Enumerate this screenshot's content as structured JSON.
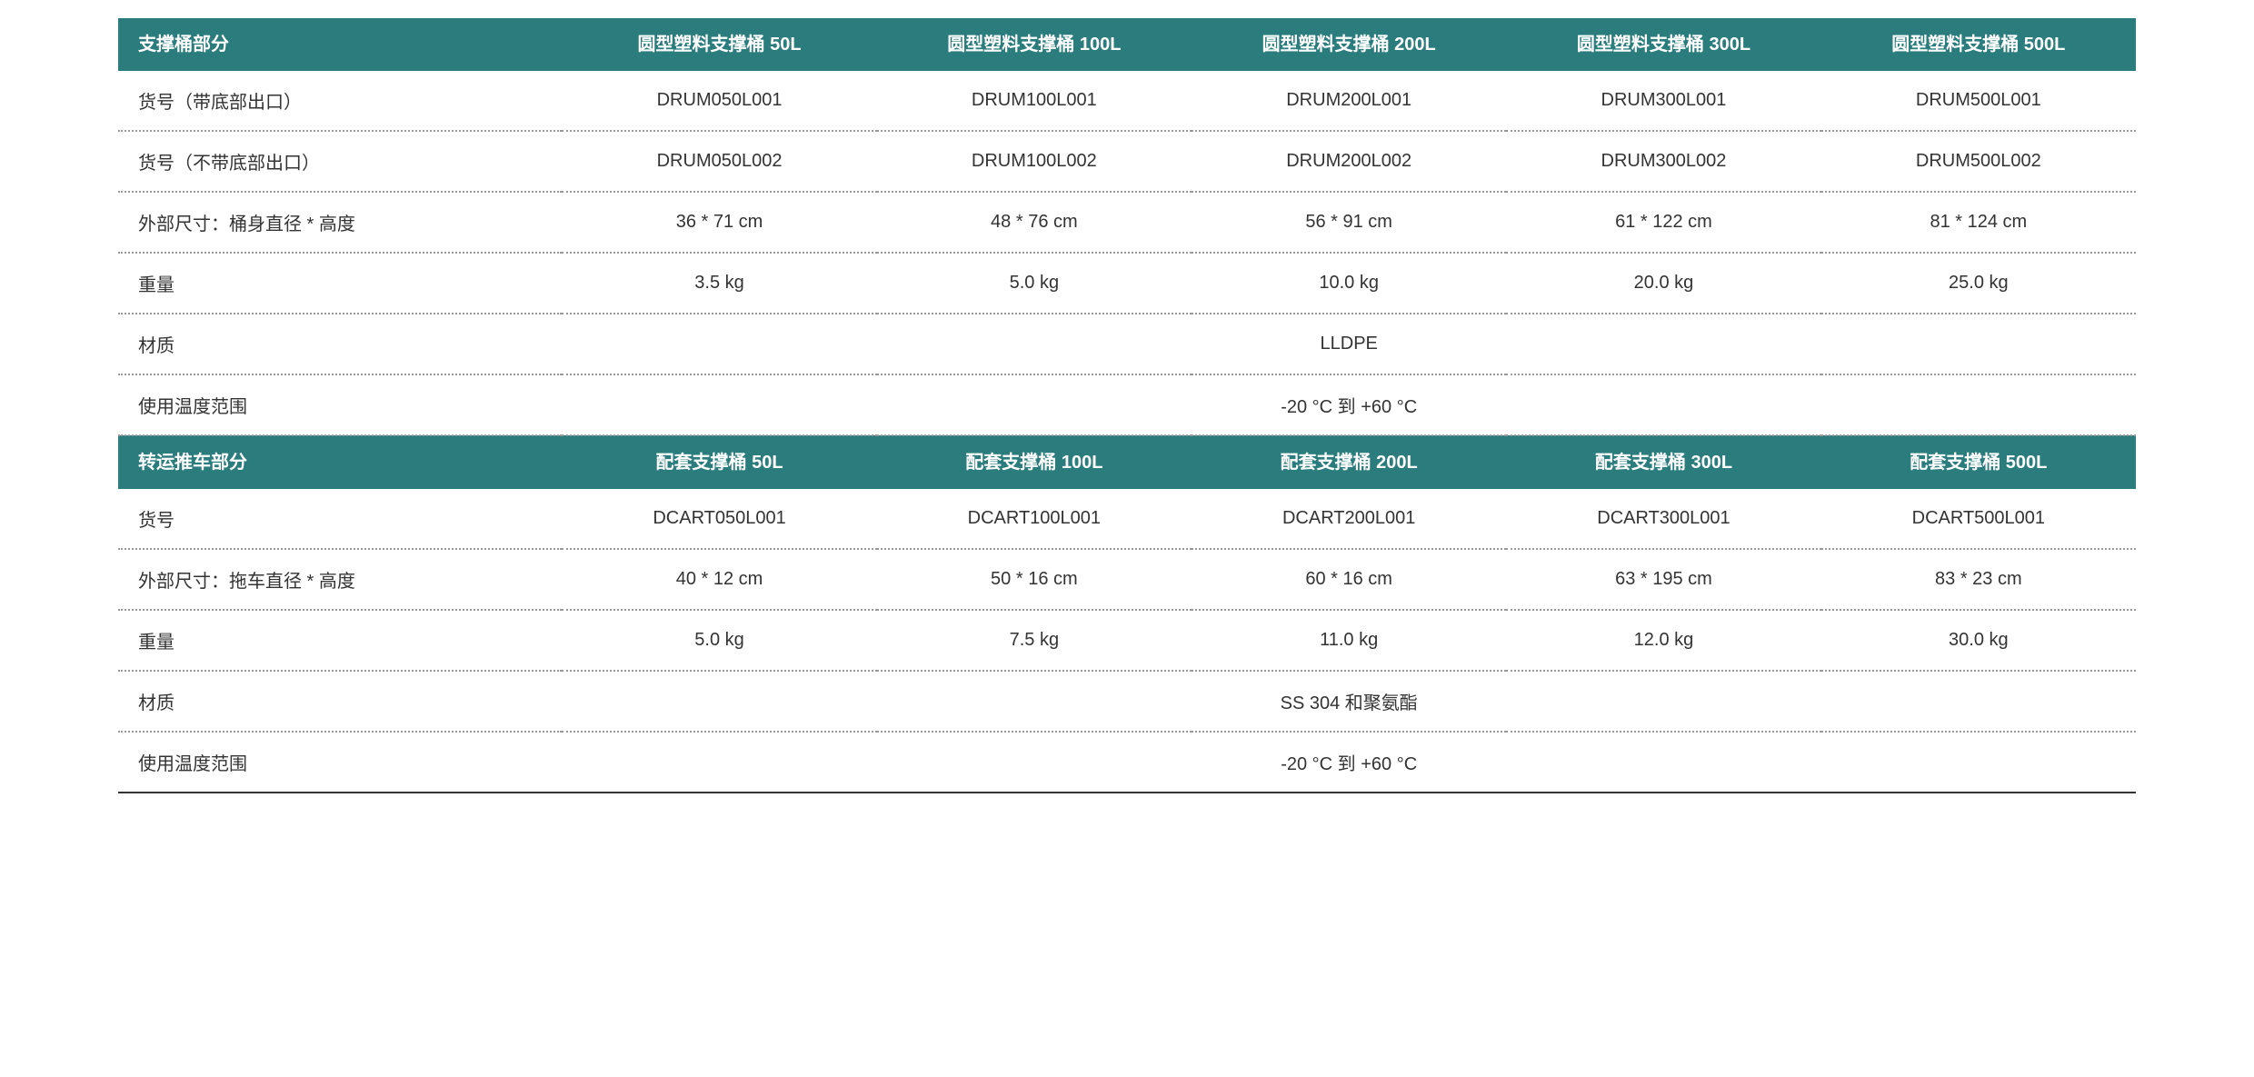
{
  "styling": {
    "header_bg": "#2b7c7d",
    "header_text_color": "#ffffff",
    "body_text_color": "#333333",
    "dotted_border_color": "#999999",
    "solid_border_color": "#333333",
    "header_font_size": 20,
    "body_font_size": 20,
    "font_family": "Microsoft YaHei"
  },
  "table1": {
    "headers": [
      "支撑桶部分",
      "圆型塑料支撑桶 50L",
      "圆型塑料支撑桶 100L",
      "圆型塑料支撑桶 200L",
      "圆型塑料支撑桶 300L",
      "圆型塑料支撑桶 500L"
    ],
    "rows": [
      {
        "label": "货号（带底部出口）",
        "values": [
          "DRUM050L001",
          "DRUM100L001",
          "DRUM200L001",
          "DRUM300L001",
          "DRUM500L001"
        ]
      },
      {
        "label": "货号（不带底部出口）",
        "values": [
          "DRUM050L002",
          "DRUM100L002",
          "DRUM200L002",
          "DRUM300L002",
          "DRUM500L002"
        ]
      },
      {
        "label": "外部尺寸：桶身直径 * 高度",
        "values": [
          "36 * 71 cm",
          "48 * 76 cm",
          "56 * 91 cm",
          "61 * 122 cm",
          "81 * 124 cm"
        ]
      },
      {
        "label": "重量",
        "values": [
          "3.5 kg",
          "5.0 kg",
          "10.0 kg",
          "20.0 kg",
          "25.0 kg"
        ]
      },
      {
        "label": "材质",
        "merged_value": "LLDPE"
      },
      {
        "label": "使用温度范围",
        "merged_value": "-20 °C 到 +60 °C"
      }
    ]
  },
  "table2": {
    "headers": [
      "转运推车部分",
      "配套支撑桶 50L",
      "配套支撑桶 100L",
      "配套支撑桶 200L",
      "配套支撑桶 300L",
      "配套支撑桶 500L"
    ],
    "rows": [
      {
        "label": "货号",
        "values": [
          "DCART050L001",
          "DCART100L001",
          "DCART200L001",
          "DCART300L001",
          "DCART500L001"
        ]
      },
      {
        "label": "外部尺寸：拖车直径 * 高度",
        "values": [
          "40 * 12 cm",
          "50 * 16 cm",
          "60 * 16 cm",
          "63 * 195 cm",
          "83 * 23 cm"
        ]
      },
      {
        "label": "重量",
        "values": [
          "5.0 kg",
          "7.5 kg",
          "11.0 kg",
          "12.0 kg",
          "30.0 kg"
        ]
      },
      {
        "label": "材质",
        "merged_value": "SS 304 和聚氨酯"
      },
      {
        "label": "使用温度范围",
        "merged_value": "-20 °C 到 +60 °C"
      }
    ]
  }
}
